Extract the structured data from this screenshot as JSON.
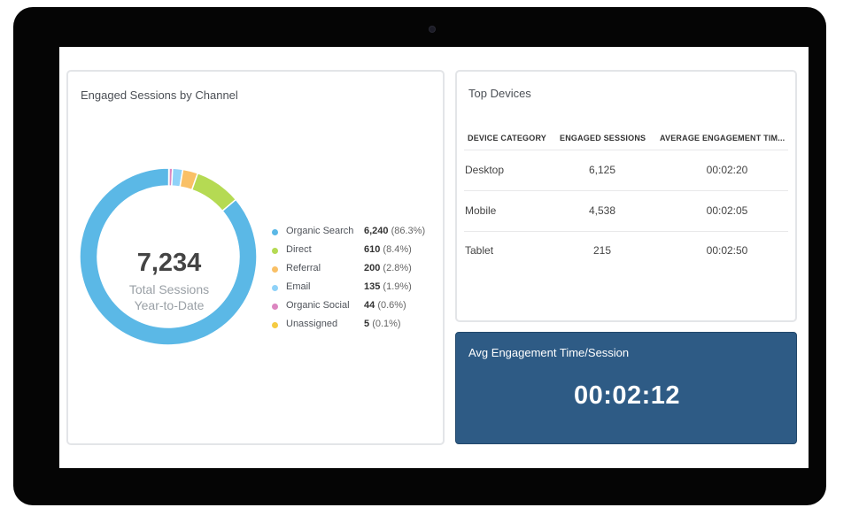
{
  "channels_card": {
    "title": "Engaged Sessions by Channel",
    "total": "7,234",
    "total_label_line1": "Total Sessions",
    "total_label_line2": "Year-to-Date",
    "legend": [
      {
        "name": "Organic Search",
        "value": "6,240",
        "pct": "(86.3%)",
        "color": "#5bb8e6"
      },
      {
        "name": "Direct",
        "value": "610",
        "pct": "(8.4%)",
        "color": "#b5da53"
      },
      {
        "name": "Referral",
        "value": "200",
        "pct": "(2.8%)",
        "color": "#f9c066"
      },
      {
        "name": "Email",
        "value": "135",
        "pct": "(1.9%)",
        "color": "#8fd2f8"
      },
      {
        "name": "Organic Social",
        "value": "44",
        "pct": "(0.6%)",
        "color": "#dc86c0"
      },
      {
        "name": "Unassigned",
        "value": "5",
        "pct": "(0.1%)",
        "color": "#f5cb42"
      }
    ]
  },
  "chart_data": {
    "type": "pie",
    "categories": [
      "Organic Search",
      "Direct",
      "Referral",
      "Email",
      "Organic Social",
      "Unassigned"
    ],
    "values": [
      6240,
      610,
      200,
      135,
      44,
      5
    ],
    "percent_labels": [
      "86.3%",
      "8.4%",
      "2.8%",
      "1.9%",
      "0.6%",
      "0.1%"
    ],
    "colors": [
      "#5bb8e6",
      "#b5da53",
      "#f9c066",
      "#8fd2f8",
      "#dc86c0",
      "#f5cb42"
    ],
    "title": "Engaged Sessions by Channel",
    "legend_position": "right"
  },
  "devices_card": {
    "title": "Top Devices",
    "columns": [
      "DEVICE CATEGORY",
      "ENGAGED SESSIONS",
      "AVERAGE ENGAGEMENT TIM..."
    ],
    "rows": [
      {
        "category": "Desktop",
        "sessions": "6,125",
        "time": "00:02:20"
      },
      {
        "category": "Mobile",
        "sessions": "4,538",
        "time": "00:02:05"
      },
      {
        "category": "Tablet",
        "sessions": "215",
        "time": "00:02:50"
      }
    ]
  },
  "avg_card": {
    "title": "Avg Engagement Time/Session",
    "value": "00:02:12",
    "background": "#2e5b85"
  }
}
